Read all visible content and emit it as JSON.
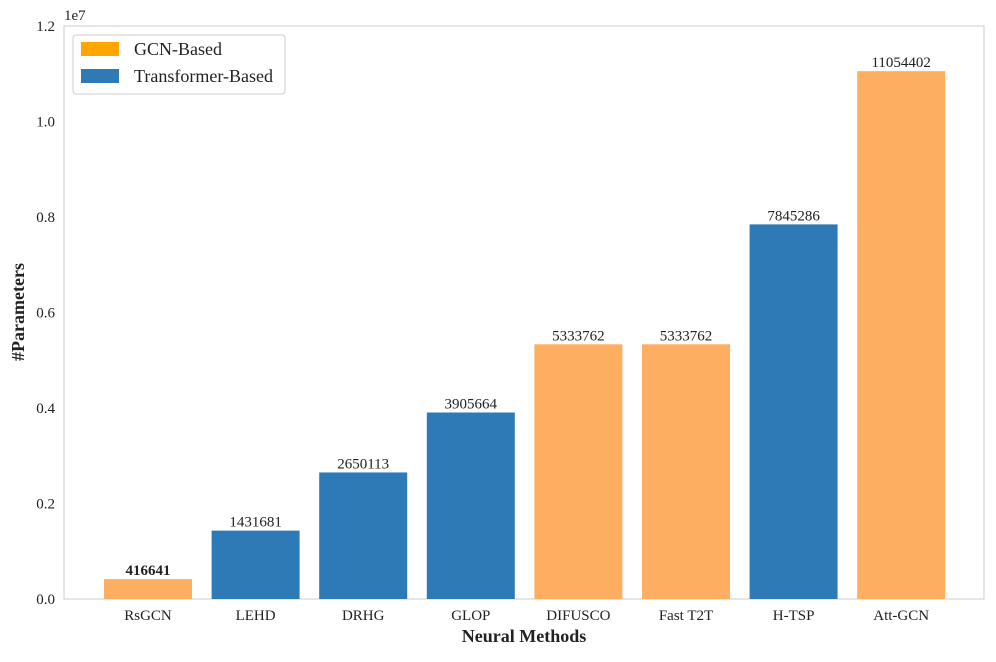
{
  "chart_data": {
    "type": "bar",
    "categories": [
      "RsGCN",
      "LEHD",
      "DRHG",
      "GLOP",
      "DIFUSCO",
      "Fast T2T",
      "H-TSP",
      "Att-GCN"
    ],
    "values": [
      416641,
      1431681,
      2650113,
      3905664,
      5333762,
      5333762,
      7845286,
      11054402
    ],
    "value_labels": [
      "416641",
      "1431681",
      "2650113",
      "3905664",
      "5333762",
      "5333762",
      "7845286",
      "11054402"
    ],
    "groups": [
      "GCN-Based",
      "Transformer-Based",
      "Transformer-Based",
      "Transformer-Based",
      "GCN-Based",
      "GCN-Based",
      "Transformer-Based",
      "GCN-Based"
    ],
    "bold_label_index": 0,
    "xlabel": "Neural Methods",
    "ylabel": "#Parameters",
    "ylim": [
      0,
      12000000
    ],
    "y_scale_label": "1e7",
    "yticks": [
      0,
      2000000,
      4000000,
      6000000,
      8000000,
      10000000,
      12000000
    ],
    "ytick_labels": [
      "0.0",
      "0.2",
      "0.4",
      "0.6",
      "0.8",
      "1.0",
      "1.2"
    ],
    "grid": false,
    "legend_position": "top-left",
    "legend": [
      {
        "name": "GCN-Based",
        "color": "#FFA500"
      },
      {
        "name": "Transformer-Based",
        "color": "#2E7AB6"
      }
    ],
    "bar_colors": {
      "GCN-Based": "#FDAE61",
      "Transformer-Based": "#2E7AB6"
    }
  }
}
